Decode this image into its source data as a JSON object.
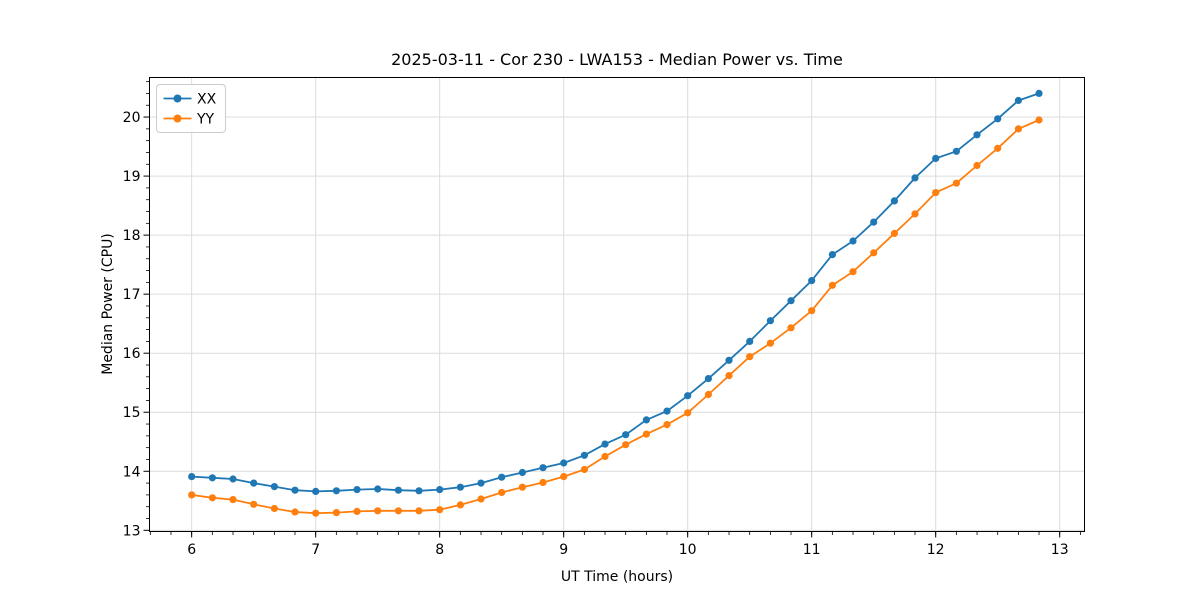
{
  "title": "2025-03-11 - Cor 230 - LWA153 - Median Power vs. Time",
  "chart_data": {
    "type": "line",
    "title": "2025-03-11 - Cor 230 - LWA153 - Median Power vs. Time",
    "xlabel": "UT Time (hours)",
    "ylabel": "Median Power (CPU)",
    "xlim": [
      5.66,
      13.2
    ],
    "ylim": [
      12.98,
      20.67
    ],
    "x_ticks": [
      6,
      7,
      8,
      9,
      10,
      11,
      12,
      13
    ],
    "y_ticks": [
      13,
      14,
      15,
      16,
      17,
      18,
      19,
      20
    ],
    "x_minor_step": 0.166667,
    "y_minor_step": 0.2,
    "grid": "major",
    "grid_color": "#dcdcdc",
    "legend_position": "upper left",
    "x": [
      6.0,
      6.167,
      6.333,
      6.5,
      6.667,
      6.833,
      7.0,
      7.167,
      7.333,
      7.5,
      7.667,
      7.833,
      8.0,
      8.167,
      8.333,
      8.5,
      8.667,
      8.833,
      9.0,
      9.167,
      9.333,
      9.5,
      9.667,
      9.833,
      10.0,
      10.167,
      10.333,
      10.5,
      10.667,
      10.833,
      11.0,
      11.167,
      11.333,
      11.5,
      11.667,
      11.833,
      12.0,
      12.167,
      12.333,
      12.5,
      12.667,
      12.833
    ],
    "series": [
      {
        "name": "XX",
        "color": "#1f77b4",
        "values": [
          13.91,
          13.89,
          13.87,
          13.8,
          13.74,
          13.68,
          13.66,
          13.67,
          13.69,
          13.7,
          13.68,
          13.67,
          13.69,
          13.73,
          13.8,
          13.9,
          13.98,
          14.06,
          14.14,
          14.27,
          14.46,
          14.62,
          14.87,
          15.02,
          15.28,
          15.57,
          15.88,
          16.2,
          16.55,
          16.89,
          17.23,
          17.67,
          17.9,
          18.22,
          18.58,
          18.97,
          19.3,
          19.42,
          19.7,
          19.97,
          20.28,
          20.4
        ]
      },
      {
        "name": "YY",
        "color": "#ff7f0e",
        "values": [
          13.6,
          13.55,
          13.52,
          13.44,
          13.37,
          13.31,
          13.29,
          13.3,
          13.32,
          13.33,
          13.33,
          13.33,
          13.35,
          13.43,
          13.53,
          13.64,
          13.73,
          13.81,
          13.91,
          14.03,
          14.25,
          14.45,
          14.63,
          14.79,
          14.99,
          15.3,
          15.62,
          15.94,
          16.17,
          16.43,
          16.72,
          17.15,
          17.38,
          17.7,
          18.03,
          18.36,
          18.72,
          18.88,
          19.18,
          19.47,
          19.8,
          19.95
        ]
      }
    ]
  }
}
